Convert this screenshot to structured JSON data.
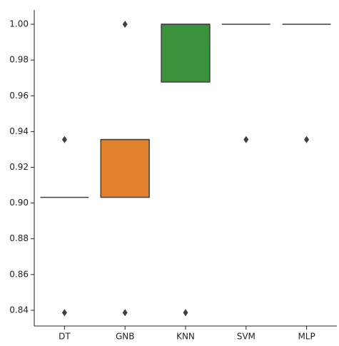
{
  "chart_data": {
    "type": "box",
    "categories": [
      "DT",
      "GNB",
      "KNN",
      "SVM",
      "MLP"
    ],
    "colors": [
      "#3274a1",
      "#e1812c",
      "#3a923a",
      "#c03d3e",
      "#9372b2"
    ],
    "boxes": [
      {
        "whislo": 0.9032,
        "q1": 0.9032,
        "median": 0.9032,
        "q3": 0.9032,
        "whishi": 0.9032,
        "fliers": [
          0.9355,
          0.8387
        ]
      },
      {
        "whislo": 0.9032,
        "q1": 0.9032,
        "median": 0.9355,
        "q3": 0.9355,
        "whishi": 0.9355,
        "fliers": [
          1.0,
          0.8387
        ]
      },
      {
        "whislo": 0.9677,
        "q1": 0.9677,
        "median": 1.0,
        "q3": 1.0,
        "whishi": 1.0,
        "fliers": [
          0.8387
        ]
      },
      {
        "whislo": 1.0,
        "q1": 1.0,
        "median": 1.0,
        "q3": 1.0,
        "whishi": 1.0,
        "fliers": [
          0.9355
        ]
      },
      {
        "whislo": 1.0,
        "q1": 1.0,
        "median": 1.0,
        "q3": 1.0,
        "whishi": 1.0,
        "fliers": [
          0.9355
        ]
      }
    ],
    "ylim": [
      0.8312,
      1.008
    ],
    "yticks": [
      0.84,
      0.86,
      0.88,
      {
        "value": 0.9,
        "label": "0.90"
      },
      0.92,
      0.94,
      0.96,
      0.98,
      {
        "value": 1.0,
        "label": "1.00"
      }
    ]
  }
}
